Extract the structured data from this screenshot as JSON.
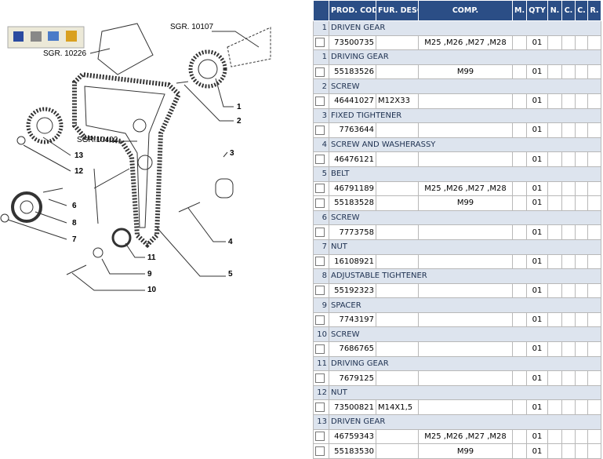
{
  "diagram": {
    "references": [
      "SGR. 10107",
      "SGR. 10226",
      "SGR.10402"
    ],
    "callouts": [
      "1",
      "2",
      "3",
      "4",
      "5",
      "6",
      "7",
      "8",
      "9",
      "10",
      "11",
      "12",
      "13"
    ]
  },
  "table": {
    "headers": [
      "PROD. CODE",
      "FUR. DESCR.",
      "COMP.",
      "M.",
      "QTY",
      "N.",
      "C.",
      "C.",
      "R."
    ],
    "groups": [
      {
        "number": "1",
        "name": "DRIVEN GEAR",
        "rows": [
          {
            "code": "73500735",
            "comp": "M25 ,M26 ,M27 ,M28",
            "qty": "01"
          }
        ]
      },
      {
        "number": "1",
        "name": "DRIVING GEAR",
        "rows": [
          {
            "code": "55183526",
            "comp": "M99",
            "qty": "01"
          }
        ]
      },
      {
        "number": "2",
        "name": "SCREW",
        "rows": [
          {
            "code": "46441027",
            "descr": "M12X33",
            "qty": "01"
          }
        ]
      },
      {
        "number": "3",
        "name": "FIXED TIGHTENER",
        "rows": [
          {
            "code": "7763644",
            "qty": "01"
          }
        ]
      },
      {
        "number": "4",
        "name": "SCREW AND WASHERASSY",
        "rows": [
          {
            "code": "46476121",
            "qty": "01"
          }
        ]
      },
      {
        "number": "5",
        "name": "BELT",
        "rows": [
          {
            "code": "46791189",
            "comp": "M25 ,M26 ,M27 ,M28",
            "qty": "01"
          },
          {
            "code": "55183528",
            "comp": "M99",
            "qty": "01"
          }
        ]
      },
      {
        "number": "6",
        "name": "SCREW",
        "rows": [
          {
            "code": "7773758",
            "qty": "01"
          }
        ]
      },
      {
        "number": "7",
        "name": "NUT",
        "rows": [
          {
            "code": "16108921",
            "qty": "01"
          }
        ]
      },
      {
        "number": "8",
        "name": "ADJUSTABLE TIGHTENER",
        "rows": [
          {
            "code": "55192323",
            "qty": "01"
          }
        ]
      },
      {
        "number": "9",
        "name": "SPACER",
        "rows": [
          {
            "code": "7743197",
            "qty": "01"
          }
        ]
      },
      {
        "number": "10",
        "name": "SCREW",
        "rows": [
          {
            "code": "7686765",
            "qty": "01"
          }
        ]
      },
      {
        "number": "11",
        "name": "DRIVING GEAR",
        "rows": [
          {
            "code": "7679125",
            "qty": "01"
          }
        ]
      },
      {
        "number": "12",
        "name": "NUT",
        "rows": [
          {
            "code": "73500821",
            "descr": "M14X1,5",
            "qty": "01"
          }
        ]
      },
      {
        "number": "13",
        "name": "DRIVEN GEAR",
        "rows": [
          {
            "code": "46759343",
            "comp": "M25 ,M26 ,M27 ,M28",
            "qty": "01"
          },
          {
            "code": "55183530",
            "comp": "M99",
            "qty": "01"
          }
        ]
      }
    ]
  }
}
